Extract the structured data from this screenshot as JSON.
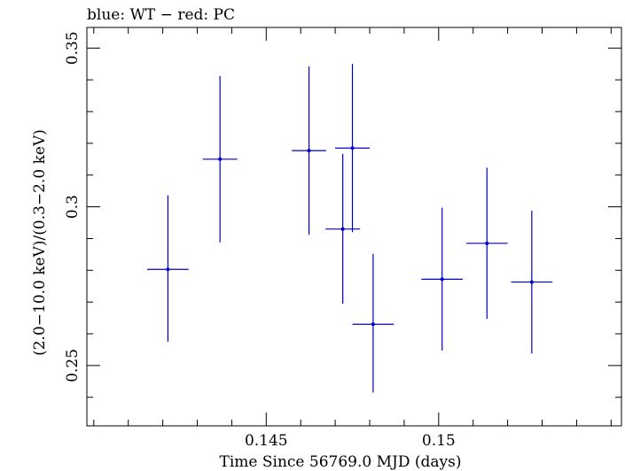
{
  "chart_data": {
    "type": "scatter",
    "title": "blue: WT − red: PC",
    "xlabel": "Time Since 56769.0 MJD (days)",
    "ylabel": "(2.0−10.0 keV)/(0.3−2.0 keV)",
    "xlim": [
      0.1398,
      0.1553
    ],
    "ylim": [
      0.231,
      0.3565
    ],
    "x_major_ticks": [
      0.145,
      0.15
    ],
    "x_tick_labels": [
      "0.145",
      "0.15"
    ],
    "y_major_ticks": [
      0.25,
      0.3,
      0.35
    ],
    "y_tick_labels": [
      "0.25",
      "0.3",
      "0.35"
    ],
    "grid": false,
    "series": [
      {
        "color": "#0000cc",
        "points": [
          {
            "x": 0.14215,
            "xerr": 0.0006,
            "y": 0.2803,
            "yerr_lo": 0.0228,
            "yerr_hi": 0.0233
          },
          {
            "x": 0.14366,
            "xerr": 0.0005,
            "y": 0.315,
            "yerr_lo": 0.0262,
            "yerr_hi": 0.0262
          },
          {
            "x": 0.14722,
            "xerr": 0.0005,
            "y": 0.293,
            "yerr_lo": 0.0235,
            "yerr_hi": 0.0237
          },
          {
            "x": 0.14624,
            "xerr": 0.0005,
            "y": 0.3177,
            "yerr_lo": 0.0265,
            "yerr_hi": 0.0265
          },
          {
            "x": 0.1475,
            "xerr": 0.0005,
            "y": 0.3185,
            "yerr_lo": 0.0265,
            "yerr_hi": 0.0265
          },
          {
            "x": 0.1481,
            "xerr": 0.0006,
            "y": 0.263,
            "yerr_lo": 0.0215,
            "yerr_hi": 0.0222
          },
          {
            "x": 0.1501,
            "xerr": 0.0006,
            "y": 0.2772,
            "yerr_lo": 0.0225,
            "yerr_hi": 0.0225
          },
          {
            "x": 0.1514,
            "xerr": 0.0006,
            "y": 0.2885,
            "yerr_lo": 0.0238,
            "yerr_hi": 0.0238
          },
          {
            "x": 0.1527,
            "xerr": 0.0006,
            "y": 0.2763,
            "yerr_lo": 0.0225,
            "yerr_hi": 0.0225
          }
        ]
      }
    ]
  }
}
